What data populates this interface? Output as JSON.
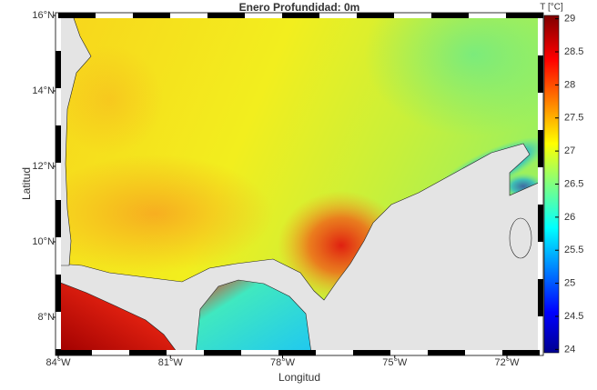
{
  "title": "Enero Profundidad: 0m",
  "x_axis": {
    "label": "Longitud",
    "lim": [
      -84,
      -71.1
    ],
    "ticks": [
      {
        "value": -84,
        "label": "84°W"
      },
      {
        "value": -81,
        "label": "81°W"
      },
      {
        "value": -78,
        "label": "78°W"
      },
      {
        "value": -75,
        "label": "75°W"
      },
      {
        "value": -72,
        "label": "72°W"
      }
    ]
  },
  "y_axis": {
    "label": "Latitud",
    "lim": [
      7.06,
      16
    ],
    "ticks": [
      {
        "value": 8,
        "label": "8°N"
      },
      {
        "value": 10,
        "label": "10°N"
      },
      {
        "value": 12,
        "label": "12°N"
      },
      {
        "value": 14,
        "label": "14°N"
      },
      {
        "value": 16,
        "label": "16°N"
      }
    ]
  },
  "colorbar": {
    "label": "T [°C]",
    "lim": [
      23.95,
      29.05
    ],
    "ticks": [
      24,
      24.5,
      25,
      25.5,
      26,
      26.5,
      27,
      27.5,
      28,
      28.5,
      29
    ]
  }
}
